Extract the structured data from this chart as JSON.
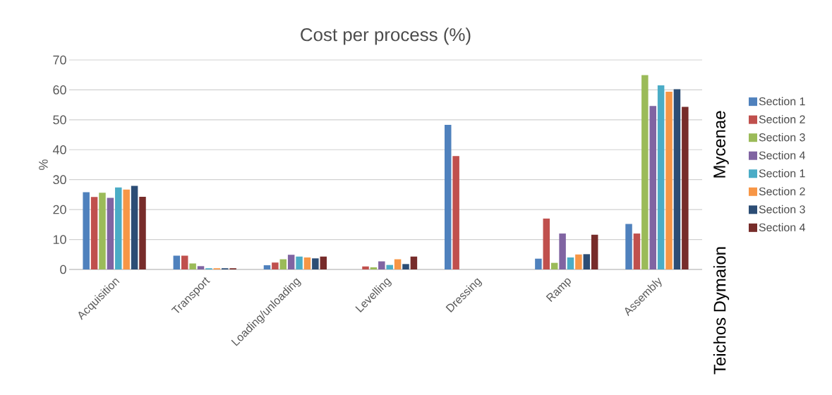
{
  "chart_data": {
    "type": "bar",
    "title": "Cost per process (%)",
    "ylabel": "%",
    "categories": [
      "Acquisition",
      "Transport",
      "Loading/unloading",
      "Levelling",
      "Dressing",
      "Ramp",
      "Assembly"
    ],
    "series": [
      {
        "name": "Section 1",
        "color": "#4f81bd",
        "values": [
          25.8,
          4.6,
          1.4,
          0,
          48.3,
          3.6,
          15.2
        ]
      },
      {
        "name": "Section 2",
        "color": "#c0504d",
        "values": [
          24.2,
          4.6,
          2.3,
          1.0,
          37.9,
          17.0,
          12.0
        ]
      },
      {
        "name": "Section 3",
        "color": "#9bbb59",
        "values": [
          25.6,
          2.0,
          3.4,
          0.7,
          0,
          2.2,
          64.9
        ]
      },
      {
        "name": "Section 4",
        "color": "#8064a2",
        "values": [
          23.9,
          1.1,
          4.9,
          2.7,
          0,
          12.0,
          54.6
        ]
      },
      {
        "name": "Section 1",
        "color": "#4bacc6",
        "values": [
          27.4,
          0.4,
          4.3,
          1.5,
          0,
          4.0,
          61.5
        ]
      },
      {
        "name": "Section 2",
        "color": "#f79646",
        "values": [
          26.7,
          0.4,
          4.0,
          3.4,
          0,
          5.0,
          59.4
        ]
      },
      {
        "name": "Section 3",
        "color": "#2c4d75",
        "values": [
          27.9,
          0.4,
          3.7,
          1.8,
          0,
          5.1,
          60.2
        ]
      },
      {
        "name": "Section 4",
        "color": "#772c2a",
        "values": [
          24.3,
          0.4,
          4.3,
          4.3,
          0,
          11.6,
          54.3
        ]
      }
    ],
    "annotations": [
      "Mycenae",
      "Teichos Dymaion"
    ],
    "ylim": [
      0,
      70
    ],
    "yticks": [
      0,
      10,
      20,
      30,
      40,
      50,
      60,
      70
    ],
    "grid": "y",
    "legend": "right"
  }
}
